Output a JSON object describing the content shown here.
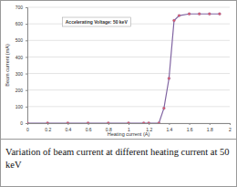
{
  "chart_data": {
    "type": "line",
    "title": "Variation of beam current at different heating current at 50 keV",
    "x_label": "Heating current (A)",
    "y_label": "Beam current (mA)",
    "annotations": [
      "Accelerating Voltage: 50 keV"
    ],
    "x": [
      0,
      0.2,
      0.4,
      0.6,
      0.8,
      1.0,
      1.15,
      1.2,
      1.3,
      1.35,
      1.4,
      1.45,
      1.5,
      1.6,
      1.7,
      1.8,
      1.9
    ],
    "values": [
      0,
      0,
      0,
      0,
      0,
      0,
      0,
      0,
      0,
      90,
      270,
      620,
      650,
      660,
      660,
      660,
      660
    ],
    "color": "#8064a2",
    "marker": "circle",
    "xlim": [
      0,
      2
    ],
    "xticks": [
      0,
      0.2,
      0.4,
      0.6,
      0.8,
      1,
      1.2,
      1.4,
      1.6,
      1.8,
      2
    ],
    "ylim": [
      0,
      700
    ],
    "yticks": [
      0,
      100,
      200,
      300,
      400,
      500,
      600,
      700
    ],
    "grid": true
  }
}
